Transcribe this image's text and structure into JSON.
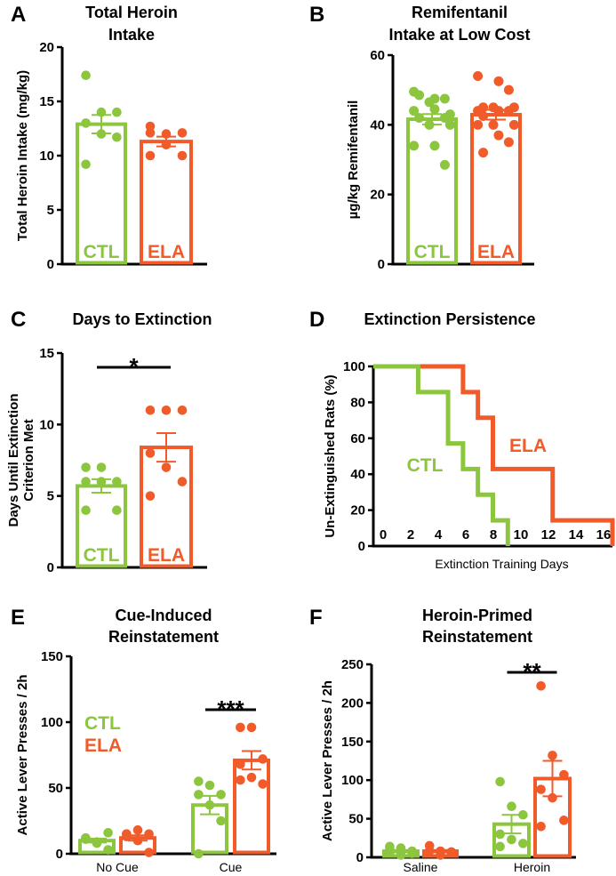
{
  "colors": {
    "CTL": "#8cc63f",
    "ELA": "#f15a29",
    "axis": "#000000"
  },
  "chart_data": [
    {
      "panel": "A",
      "type": "bar",
      "title": [
        "Total Heroin",
        "Intake"
      ],
      "ylabel": "Total Heroin Intake (mg/kg)",
      "ylim": [
        0,
        20
      ],
      "yticks": [
        0,
        5,
        10,
        15,
        20
      ],
      "categories": [
        ""
      ],
      "bar_labels": [
        "CTL",
        "ELA"
      ],
      "series": [
        {
          "name": "CTL",
          "mean": [
            12.9
          ],
          "sem": [
            0.85
          ],
          "points": [
            [
              17.4,
              14,
              14,
              13,
              12,
              11.7,
              9.2
            ]
          ]
        },
        {
          "name": "ELA",
          "mean": [
            11.3
          ],
          "sem": [
            0.45
          ],
          "points": [
            [
              12.7,
              12,
              12.1,
              12.1,
              11,
              10,
              10
            ]
          ]
        }
      ],
      "significance": []
    },
    {
      "panel": "B",
      "type": "bar",
      "title": [
        "Remifentanil",
        "Intake at Low Cost"
      ],
      "ylabel": "µg/kg Remifentanil",
      "ylim": [
        0,
        60
      ],
      "yticks": [
        0,
        20,
        40,
        60
      ],
      "categories": [
        ""
      ],
      "bar_labels": [
        "CTL",
        "ELA"
      ],
      "series": [
        {
          "name": "CTL",
          "mean": [
            41.6
          ],
          "sem": [
            1.5
          ],
          "points": [
            [
              49.5,
              47.5,
              47.5,
              48.5,
              46.5,
              43,
              44,
              44.5,
              42,
              42,
              40,
              40,
              34,
              34,
              28.5
            ]
          ]
        },
        {
          "name": "ELA",
          "mean": [
            42.9
          ],
          "sem": [
            1.4
          ],
          "points": [
            [
              54,
              52.5,
              50,
              45,
              45,
              45,
              44,
              44,
              44,
              42.5,
              40,
              40,
              40,
              37,
              35,
              32
            ]
          ]
        }
      ],
      "significance": []
    },
    {
      "panel": "C",
      "type": "bar",
      "title": [
        "Days to Extinction"
      ],
      "ylabel": [
        "Days Until Extinction",
        "Criterion Met"
      ],
      "ylim": [
        0,
        15
      ],
      "yticks": [
        0,
        5,
        10,
        15
      ],
      "categories": [
        ""
      ],
      "bar_labels": [
        "CTL",
        "ELA"
      ],
      "series": [
        {
          "name": "CTL",
          "mean": [
            5.7
          ],
          "sem": [
            0.47
          ],
          "points": [
            [
              7,
              7,
              6,
              6,
              6,
              4,
              4
            ]
          ]
        },
        {
          "name": "ELA",
          "mean": [
            8.4
          ],
          "sem": [
            1.0
          ],
          "points": [
            [
              11,
              11,
              11,
              8,
              7,
              6,
              5
            ]
          ]
        }
      ],
      "significance": [
        {
          "category": 0,
          "label": "*"
        }
      ]
    },
    {
      "panel": "D",
      "type": "line",
      "title": [
        "Extinction Persistence"
      ],
      "ylabel": "Un-Extinguished Rats (%)",
      "xlabel": "Extinction Training Days",
      "ylim": [
        0,
        100
      ],
      "yticks": [
        0,
        20,
        40,
        60,
        80,
        100
      ],
      "xlim": [
        0,
        16
      ],
      "xticks": [
        0,
        2,
        4,
        6,
        8,
        10,
        12,
        14,
        16
      ],
      "series": [
        {
          "name": "CTL",
          "x": [
            0,
            3,
            5,
            6,
            7,
            8,
            9
          ],
          "y": [
            100,
            85.7,
            57.1,
            42.9,
            28.6,
            14.3,
            0
          ]
        },
        {
          "name": "ELA",
          "x": [
            0,
            6,
            7,
            8,
            12,
            16
          ],
          "y": [
            100,
            85.7,
            71.4,
            42.9,
            14.3,
            0
          ]
        }
      ]
    },
    {
      "panel": "E",
      "type": "bar",
      "title": [
        "Cue-Induced",
        "Reinstatement"
      ],
      "ylabel": "Active Lever Presses / 2h",
      "ylim": [
        0,
        150
      ],
      "yticks": [
        0,
        50,
        100,
        150
      ],
      "categories": [
        "No Cue",
        "Cue"
      ],
      "legend": [
        "CTL",
        "ELA"
      ],
      "series": [
        {
          "name": "CTL",
          "mean": [
            10,
            37
          ],
          "sem": [
            1.5,
            7
          ],
          "points": [
            [
              12,
              8,
              3,
              12,
              9,
              16,
              11
            ],
            [
              55,
              52,
              45,
              45,
              37,
              25,
              0
            ]
          ]
        },
        {
          "name": "ELA",
          "mean": [
            12,
            71
          ],
          "sem": [
            2,
            7
          ],
          "points": [
            [
              15,
              18,
              1,
              13,
              10,
              15,
              15
            ],
            [
              96,
              96,
              72,
              68,
              58,
              53,
              56
            ]
          ]
        }
      ],
      "significance": [
        {
          "category": 1,
          "label": "***"
        }
      ]
    },
    {
      "panel": "F",
      "type": "bar",
      "title": [
        "Heroin-Primed",
        "Reinstatement"
      ],
      "ylabel": "Active Lever Presses / 2h",
      "ylim": [
        0,
        250
      ],
      "yticks": [
        0,
        50,
        100,
        150,
        200,
        250
      ],
      "categories": [
        "Saline",
        "Heroin"
      ],
      "series": [
        {
          "name": "CTL",
          "mean": [
            8,
            43
          ],
          "sem": [
            1.5,
            12
          ],
          "points": [
            [
              14,
              12,
              5,
              10,
              3,
              8,
              6
            ],
            [
              98,
              66,
              55,
              30,
              23,
              18,
              14
            ]
          ]
        },
        {
          "name": "ELA",
          "mean": [
            8,
            102
          ],
          "sem": [
            1.5,
            23
          ],
          "points": [
            [
              15,
              8,
              6,
              8,
              3,
              7,
              8
            ],
            [
              222,
              132,
              107,
              88,
              77,
              48,
              40
            ]
          ]
        }
      ],
      "significance": [
        {
          "category": 1,
          "label": "**"
        }
      ]
    }
  ]
}
